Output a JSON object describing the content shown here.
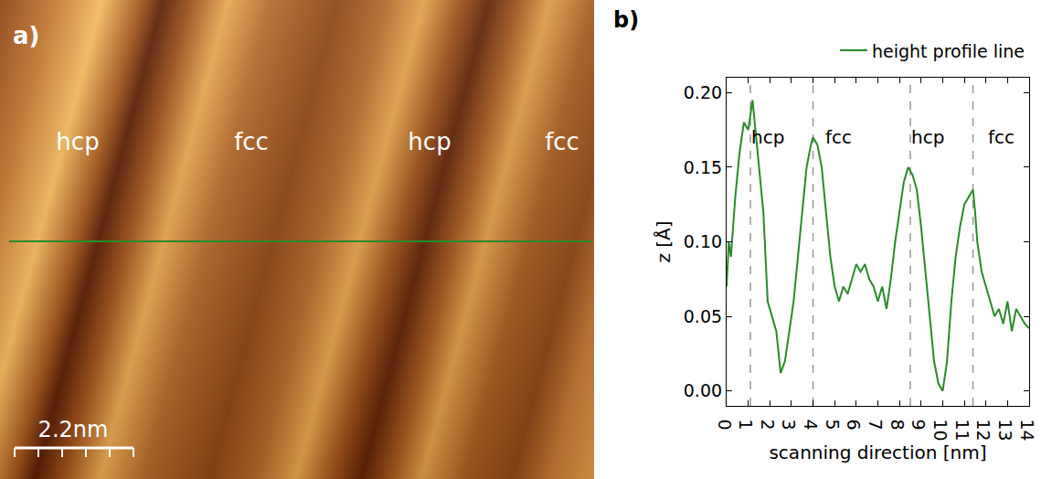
{
  "image": {
    "panel": "a)",
    "labels": [
      "hcp",
      "fcc",
      "hcp",
      "fcc"
    ],
    "scale_bar": "2.2nm"
  },
  "chart_data": {
    "type": "line",
    "panel": "b)",
    "x_label": "scanning direction [nm]",
    "y_label": "z [Å]",
    "x": [
      0,
      0.1,
      0.2,
      0.4,
      0.6,
      0.8,
      1.0,
      1.2,
      1.3,
      1.5,
      1.7,
      1.9,
      2.1,
      2.3,
      2.5,
      2.7,
      2.9,
      3.1,
      3.3,
      3.5,
      3.7,
      3.9,
      4.0,
      4.2,
      4.4,
      4.6,
      4.8,
      5.0,
      5.2,
      5.4,
      5.6,
      5.8,
      6.0,
      6.2,
      6.4,
      6.6,
      6.8,
      7.0,
      7.2,
      7.4,
      7.6,
      7.8,
      8.0,
      8.2,
      8.4,
      8.6,
      8.8,
      9.0,
      9.2,
      9.4,
      9.6,
      9.8,
      10.0,
      10.2,
      10.4,
      10.6,
      10.8,
      11.0,
      11.2,
      11.4,
      11.5,
      11.6,
      11.8,
      12.0,
      12.2,
      12.4,
      12.6,
      12.8,
      13.0,
      13.2,
      13.4,
      13.6,
      13.8,
      14.0
    ],
    "series": [
      {
        "name": "height profile line",
        "color": "#2a8a2a",
        "values": [
          0.07,
          0.1,
          0.09,
          0.13,
          0.16,
          0.18,
          0.175,
          0.195,
          0.18,
          0.15,
          0.12,
          0.06,
          0.05,
          0.04,
          0.012,
          0.02,
          0.04,
          0.06,
          0.09,
          0.12,
          0.15,
          0.165,
          0.17,
          0.165,
          0.15,
          0.12,
          0.09,
          0.07,
          0.06,
          0.07,
          0.065,
          0.075,
          0.085,
          0.08,
          0.085,
          0.075,
          0.07,
          0.06,
          0.07,
          0.055,
          0.075,
          0.1,
          0.12,
          0.14,
          0.15,
          0.145,
          0.135,
          0.11,
          0.08,
          0.05,
          0.02,
          0.005,
          0.0,
          0.02,
          0.06,
          0.09,
          0.11,
          0.125,
          0.13,
          0.135,
          0.12,
          0.1,
          0.08,
          0.07,
          0.06,
          0.05,
          0.055,
          0.045,
          0.06,
          0.04,
          0.055,
          0.05,
          0.045,
          0.042
        ]
      }
    ],
    "xlim": [
      0,
      14
    ],
    "ylim": [
      -0.01,
      0.21
    ],
    "xticks": [
      0,
      1,
      2,
      3,
      4,
      5,
      6,
      7,
      8,
      9,
      10,
      11,
      12,
      13,
      14
    ],
    "yticks": [
      {
        "value": 0,
        "label": "0.00"
      },
      0.05,
      {
        "value": 0.1,
        "label": "0.10"
      },
      0.15,
      {
        "value": 0.2,
        "label": "0.20"
      }
    ],
    "vlines": [
      1.1,
      4.0,
      8.5,
      11.4
    ],
    "annotations": [
      {
        "x": 1.9,
        "y": 0.17,
        "text": "hcp"
      },
      {
        "x": 5.2,
        "y": 0.17,
        "text": "fcc"
      },
      {
        "x": 9.3,
        "y": 0.17,
        "text": "hcp"
      },
      {
        "x": 12.7,
        "y": 0.17,
        "text": "fcc"
      }
    ],
    "legend": "top right",
    "grid": false
  }
}
